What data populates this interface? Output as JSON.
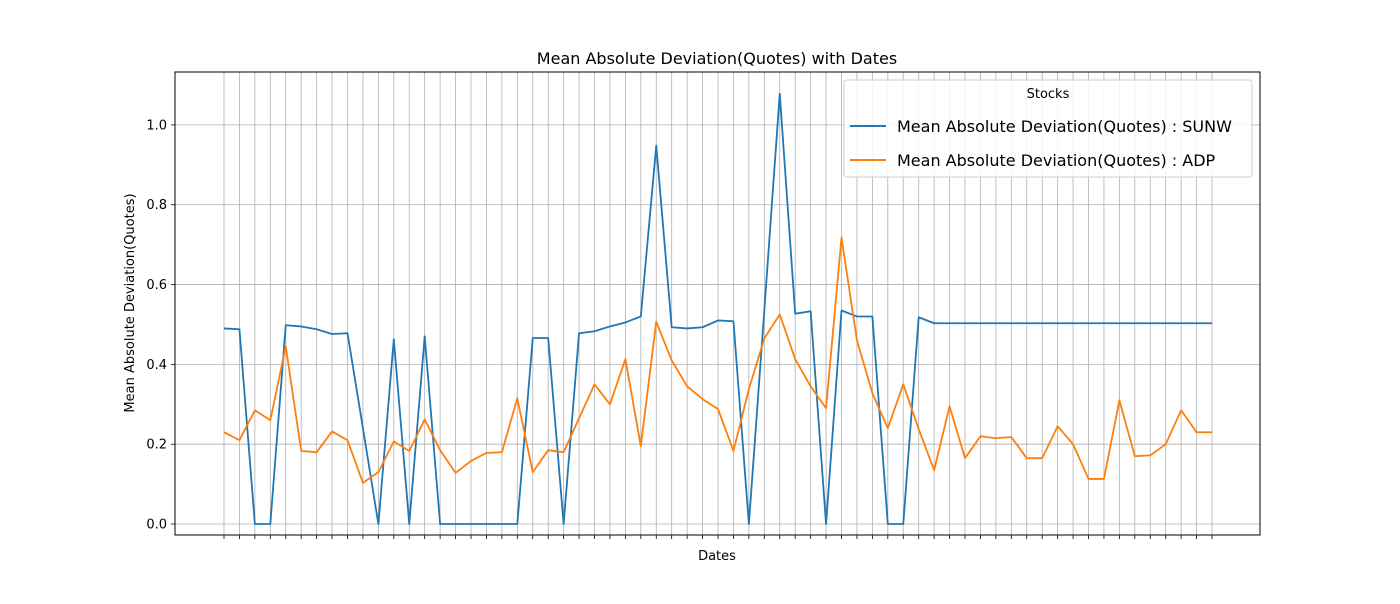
{
  "chart_data": {
    "type": "line",
    "title": "Mean Absolute Deviation(Quotes) with Dates",
    "xlabel": "Dates",
    "ylabel": "Mean Absolute Deviation(Quotes)",
    "ylim": [
      -0.0275,
      1.1325
    ],
    "yticks": [
      0.0,
      0.2,
      0.4,
      0.6,
      0.8,
      1.0
    ],
    "ytick_labels": [
      "0.0",
      "0.2",
      "0.4",
      "0.6",
      "0.8",
      "1.0"
    ],
    "xtick_labels_visible": false,
    "point_count": 65,
    "grid": true,
    "legend": {
      "title": "Stocks",
      "placement": "upper-right"
    },
    "series": [
      {
        "name": "Mean Absolute Deviation(Quotes) : SUNW",
        "color": "#1f77b4",
        "values": [
          0.49,
          0.488,
          0.0,
          0.0,
          0.498,
          0.495,
          0.488,
          0.476,
          0.478,
          0.24,
          0.0,
          0.463,
          0.0,
          0.47,
          0.0,
          0.0,
          0.0,
          0.0,
          0.0,
          0.0,
          0.466,
          0.466,
          0.0,
          0.478,
          0.483,
          0.495,
          0.505,
          0.52,
          0.948,
          0.493,
          0.49,
          0.493,
          0.51,
          0.508,
          0.0,
          0.535,
          1.078,
          0.527,
          0.533,
          0.0,
          0.535,
          0.52,
          0.52,
          0.0,
          0.0,
          0.518,
          0.503,
          0.503,
          0.503,
          0.503,
          0.503,
          0.503,
          0.503,
          0.503,
          0.503,
          0.503,
          0.503,
          0.503,
          0.503,
          0.503,
          0.503,
          0.503,
          0.503,
          0.503,
          0.503
        ]
      },
      {
        "name": "Mean Absolute Deviation(Quotes) : ADP",
        "color": "#ff7f0e",
        "values": [
          0.23,
          0.21,
          0.285,
          0.26,
          0.445,
          0.183,
          0.18,
          0.232,
          0.21,
          0.103,
          0.13,
          0.207,
          0.183,
          0.262,
          0.185,
          0.128,
          0.158,
          0.178,
          0.18,
          0.315,
          0.13,
          0.185,
          0.18,
          0.265,
          0.35,
          0.3,
          0.413,
          0.195,
          0.507,
          0.41,
          0.345,
          0.313,
          0.288,
          0.183,
          0.338,
          0.465,
          0.525,
          0.413,
          0.345,
          0.29,
          0.718,
          0.46,
          0.328,
          0.24,
          0.35,
          0.238,
          0.135,
          0.295,
          0.165,
          0.22,
          0.215,
          0.218,
          0.165,
          0.165,
          0.245,
          0.2,
          0.113,
          0.113,
          0.31,
          0.17,
          0.172,
          0.2,
          0.285,
          0.23,
          0.23
        ]
      }
    ]
  }
}
